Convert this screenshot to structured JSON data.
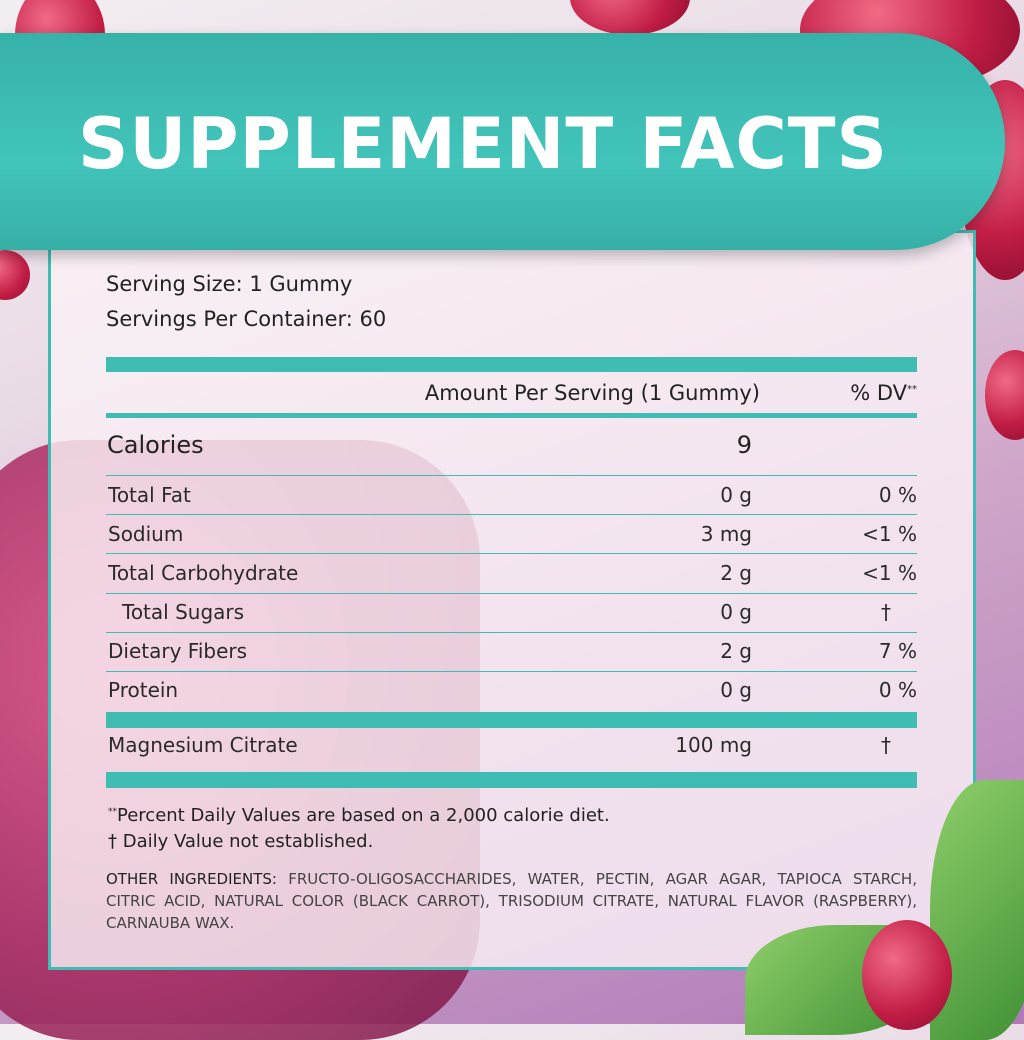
{
  "title": "SUPPLEMENT FACTS",
  "serving_size": "Serving Size: 1 Gummy",
  "servings_per_container": "Servings Per Container: 60",
  "header": {
    "amount": "Amount Per Serving (1 Gummy)",
    "dv": "% DV",
    "dv_mark": "**"
  },
  "calories": {
    "label": "Calories",
    "amount": "9"
  },
  "rows": [
    {
      "name": "Total Fat",
      "amount": "0 g",
      "dv": "0 %"
    },
    {
      "name": "Sodium",
      "amount": "3 mg",
      "dv": "<1 %"
    },
    {
      "name": "Total Carbohydrate",
      "amount": "2 g",
      "dv": "<1 %"
    },
    {
      "name": "Total Sugars",
      "amount": "0 g",
      "dv": "†"
    },
    {
      "name": "Dietary Fibers",
      "amount": "2 g",
      "dv": "7 %"
    },
    {
      "name": "Protein",
      "amount": "0 g",
      "dv": "0 %"
    }
  ],
  "magnesium": {
    "name": "Magnesium Citrate",
    "amount": "100 mg",
    "dv": "†"
  },
  "footnotes": {
    "mark": "**",
    "percent": "Percent Daily Values are based on a 2,000 calorie diet.",
    "dagger": "† Daily Value not established."
  },
  "ingredients": {
    "label": "OTHER INGREDIENTS:",
    "text": "FRUCTO-OLIGOSACCHARIDES, WATER, PECTIN, AGAR AGAR, TAPIOCA STARCH, CITRIC ACID, NATURAL COLOR (BLACK CARROT), TRISODIUM CITRATE, NATURAL FLAVOR (RASPBERRY), CARNAUBA WAX."
  },
  "colors": {
    "accent": "#3fbdb2",
    "text": "#222222"
  }
}
